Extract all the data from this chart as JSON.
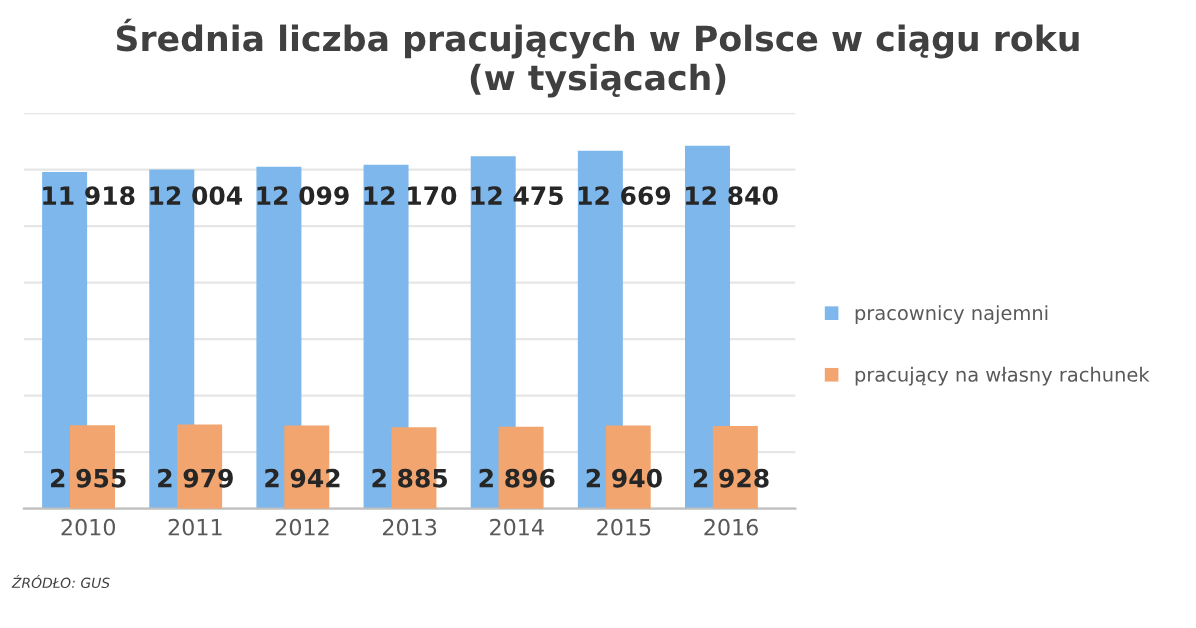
{
  "chart_data": {
    "type": "bar",
    "title": "Średnia liczba pracujących w Polsce w ciągu roku\n(w tysiącach)",
    "categories": [
      "2010",
      "2011",
      "2012",
      "2013",
      "2014",
      "2015",
      "2016"
    ],
    "series": [
      {
        "name": "pracownicy najemni",
        "color": "#7db7ec",
        "values": [
          11918,
          12004,
          12099,
          12170,
          12475,
          12669,
          12840
        ],
        "value_labels": [
          "11 918",
          "12 004",
          "12 099",
          "12 170",
          "12 475",
          "12 669",
          "12 840"
        ]
      },
      {
        "name": "pracujący na własny rachunek",
        "color": "#f2a56f",
        "values": [
          2955,
          2979,
          2942,
          2885,
          2896,
          2940,
          2928
        ],
        "value_labels": [
          "2 955",
          "2 979",
          "2 942",
          "2 885",
          "2 896",
          "2 940",
          "2 928"
        ]
      }
    ],
    "ylim": [
      0,
      14000
    ],
    "yticks": [
      {
        "value": 0,
        "label": null
      },
      {
        "value": 2000,
        "label": null
      },
      {
        "value": 4000,
        "label": null
      },
      {
        "value": 6000,
        "label": null
      },
      {
        "value": 8000,
        "label": null
      },
      {
        "value": 10000,
        "label": null
      },
      {
        "value": 12000,
        "label": null
      },
      {
        "value": 14000,
        "label": null
      }
    ],
    "tick_labels": "x",
    "grid": "y",
    "legend": "right",
    "annotations": [
      "ŹRÓDŁO: GUS"
    ]
  }
}
